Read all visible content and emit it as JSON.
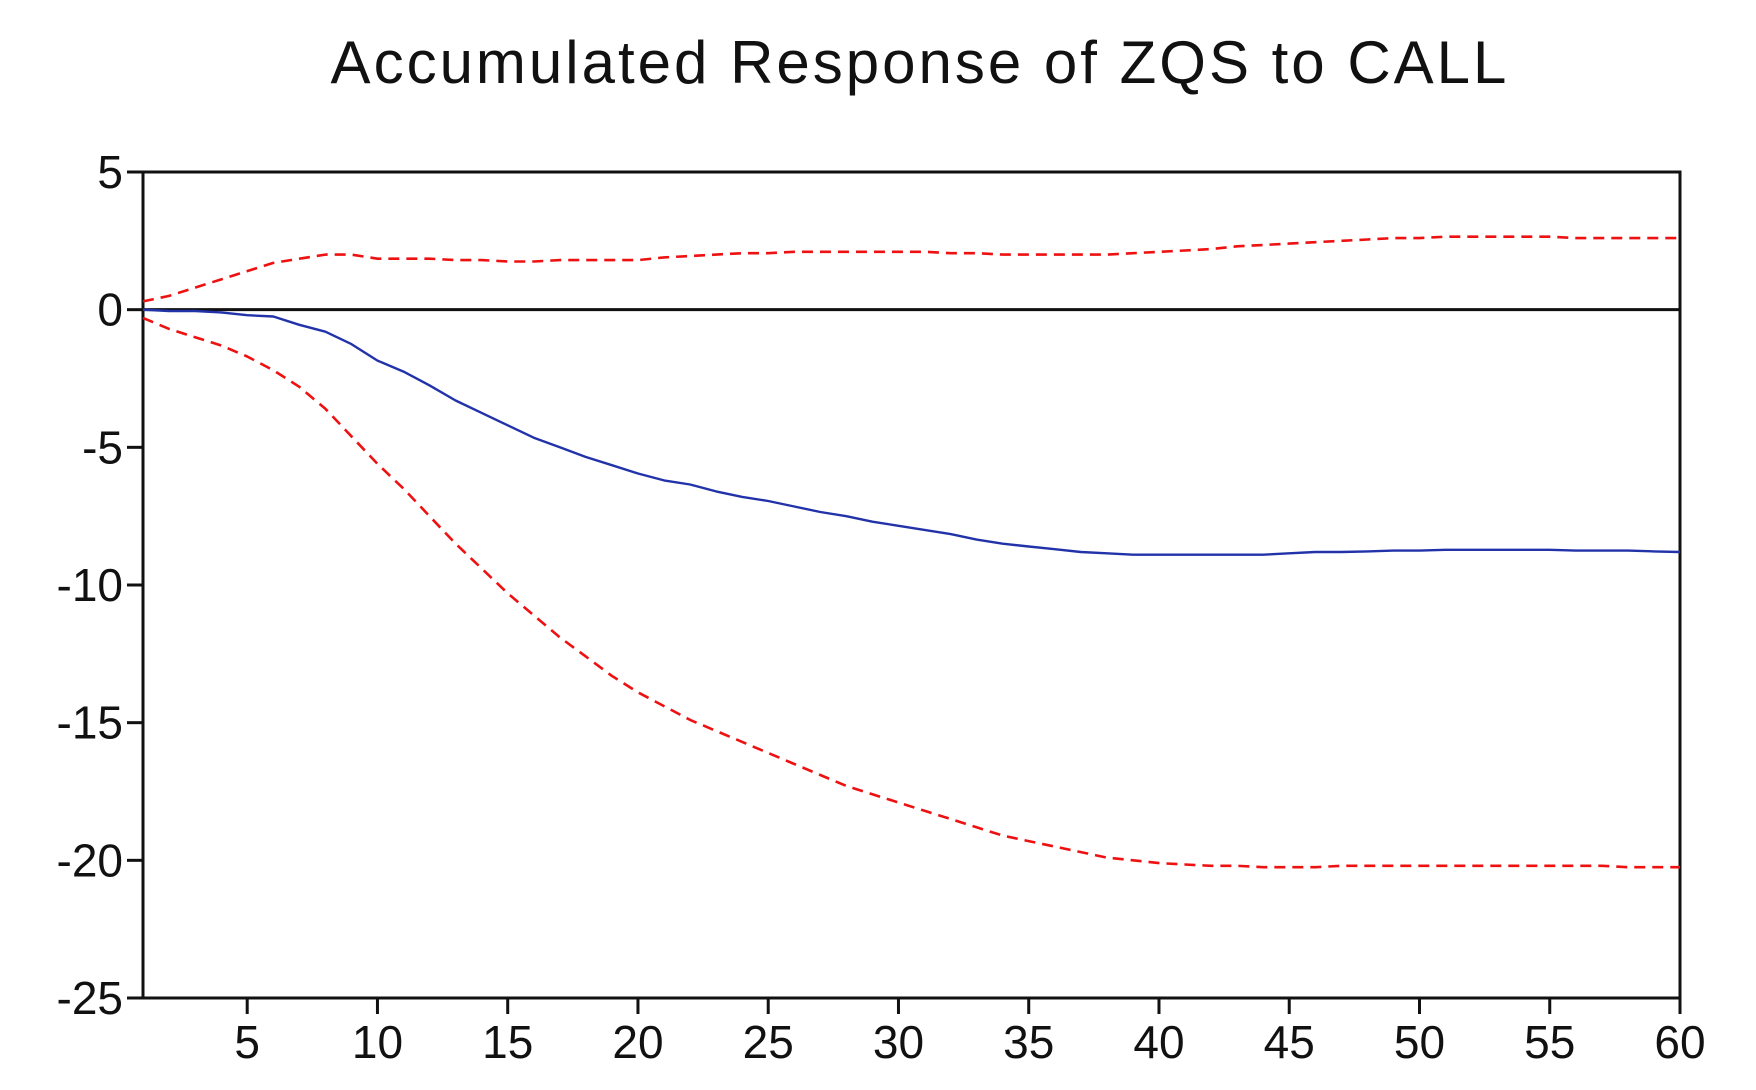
{
  "title": "Accumulated Response of ZQS to CALL",
  "colors": {
    "response": "#2233AA",
    "bands": "#EE1111",
    "axis": "#111111",
    "background": "#FFFFFF"
  },
  "chart_data": {
    "type": "line",
    "title": "Accumulated Response of ZQS to CALL",
    "xlabel": "",
    "ylabel": "",
    "xlim": [
      1,
      60
    ],
    "ylim": [
      -25,
      5
    ],
    "xticks": [
      5,
      10,
      15,
      20,
      25,
      30,
      35,
      40,
      45,
      50,
      55,
      60
    ],
    "yticks": [
      5,
      0,
      -5,
      -10,
      -15,
      -20,
      -25
    ],
    "grid": false,
    "legend": "none",
    "zero_line": true,
    "x": [
      1,
      2,
      3,
      4,
      5,
      6,
      7,
      8,
      9,
      10,
      11,
      12,
      13,
      14,
      15,
      16,
      17,
      18,
      19,
      20,
      21,
      22,
      23,
      24,
      25,
      26,
      27,
      28,
      29,
      30,
      31,
      32,
      33,
      34,
      35,
      36,
      37,
      38,
      39,
      40,
      41,
      42,
      43,
      44,
      45,
      46,
      47,
      48,
      49,
      50,
      51,
      52,
      53,
      54,
      55,
      56,
      57,
      58,
      59,
      60
    ],
    "series": [
      {
        "style": "solid",
        "color": "#2233AA",
        "values": [
          0.0,
          -0.05,
          -0.05,
          -0.1,
          -0.2,
          -0.25,
          -0.55,
          -0.8,
          -1.25,
          -1.85,
          -2.25,
          -2.75,
          -3.3,
          -3.75,
          -4.2,
          -4.65,
          -5.0,
          -5.35,
          -5.65,
          -5.95,
          -6.2,
          -6.35,
          -6.6,
          -6.8,
          -6.95,
          -7.15,
          -7.35,
          -7.5,
          -7.7,
          -7.85,
          -8.0,
          -8.15,
          -8.35,
          -8.5,
          -8.6,
          -8.7,
          -8.8,
          -8.85,
          -8.9,
          -8.9,
          -8.9,
          -8.9,
          -8.9,
          -8.9,
          -8.85,
          -8.8,
          -8.8,
          -8.78,
          -8.75,
          -8.75,
          -8.72,
          -8.72,
          -8.72,
          -8.72,
          -8.72,
          -8.75,
          -8.75,
          -8.75,
          -8.78,
          -8.8
        ]
      },
      {
        "style": "dashed",
        "color": "#EE1111",
        "values": [
          0.3,
          0.5,
          0.8,
          1.1,
          1.4,
          1.7,
          1.85,
          2.0,
          2.0,
          1.85,
          1.85,
          1.85,
          1.8,
          1.8,
          1.75,
          1.75,
          1.8,
          1.8,
          1.8,
          1.8,
          1.9,
          1.95,
          2.0,
          2.05,
          2.05,
          2.1,
          2.1,
          2.1,
          2.1,
          2.1,
          2.1,
          2.05,
          2.05,
          2.0,
          2.0,
          2.0,
          2.0,
          2.0,
          2.05,
          2.1,
          2.15,
          2.2,
          2.3,
          2.35,
          2.4,
          2.45,
          2.5,
          2.55,
          2.6,
          2.6,
          2.65,
          2.65,
          2.65,
          2.65,
          2.65,
          2.6,
          2.6,
          2.6,
          2.6,
          2.6
        ]
      },
      {
        "style": "dashed",
        "color": "#EE1111",
        "values": [
          -0.3,
          -0.7,
          -1.0,
          -1.3,
          -1.7,
          -2.2,
          -2.8,
          -3.6,
          -4.6,
          -5.6,
          -6.5,
          -7.5,
          -8.5,
          -9.4,
          -10.3,
          -11.1,
          -11.9,
          -12.6,
          -13.3,
          -13.9,
          -14.4,
          -14.9,
          -15.3,
          -15.7,
          -16.1,
          -16.5,
          -16.9,
          -17.3,
          -17.6,
          -17.9,
          -18.2,
          -18.5,
          -18.8,
          -19.1,
          -19.3,
          -19.5,
          -19.7,
          -19.9,
          -20.0,
          -20.1,
          -20.15,
          -20.2,
          -20.2,
          -20.25,
          -20.25,
          -20.25,
          -20.2,
          -20.2,
          -20.2,
          -20.2,
          -20.2,
          -20.2,
          -20.2,
          -20.2,
          -20.2,
          -20.2,
          -20.2,
          -20.25,
          -20.25,
          -20.25
        ]
      }
    ]
  }
}
